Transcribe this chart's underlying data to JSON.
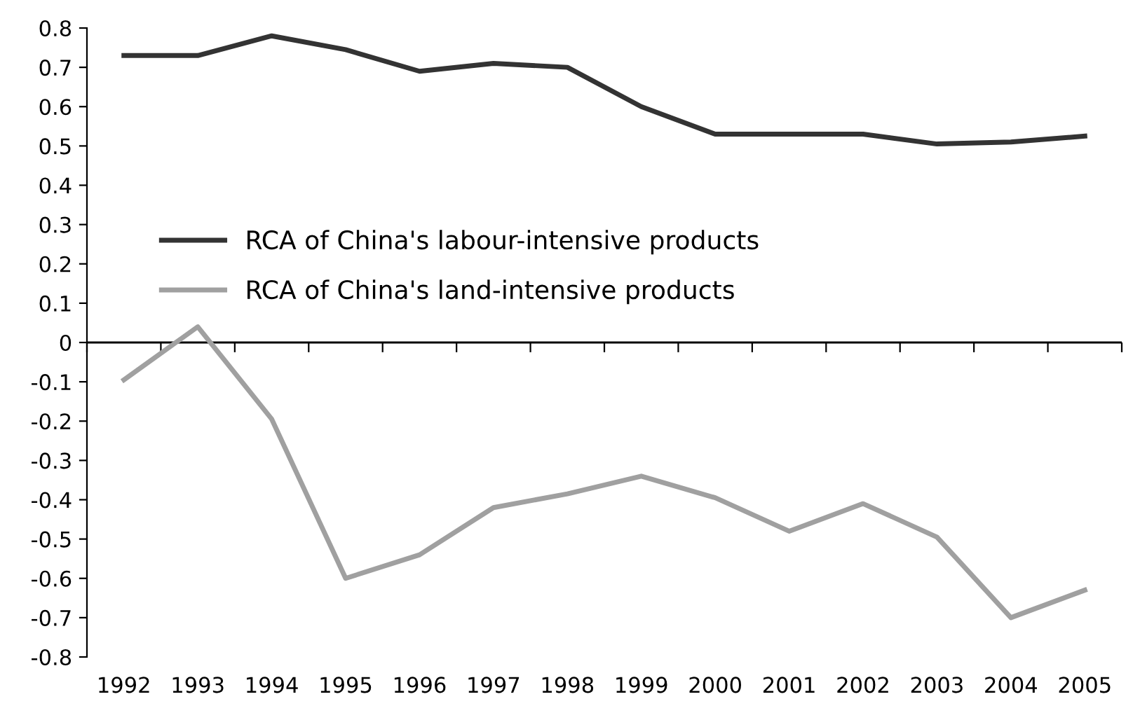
{
  "chart_data": {
    "type": "line",
    "categories": [
      "1992",
      "1993",
      "1994",
      "1995",
      "1996",
      "1997",
      "1998",
      "1999",
      "2000",
      "2001",
      "2002",
      "2003",
      "2004",
      "2005"
    ],
    "series": [
      {
        "name": "RCA of China's labour-intensive products",
        "color": "#333333",
        "values": [
          0.73,
          0.73,
          0.78,
          0.745,
          0.69,
          0.71,
          0.7,
          0.6,
          0.53,
          0.53,
          0.53,
          0.505,
          0.51,
          0.525
        ]
      },
      {
        "name": "RCA of China's land-intensive products",
        "color": "#a0a0a0",
        "values": [
          -0.095,
          0.04,
          -0.195,
          -0.6,
          -0.54,
          -0.42,
          -0.385,
          -0.34,
          -0.395,
          -0.48,
          -0.41,
          -0.495,
          -0.7,
          -0.63
        ]
      }
    ],
    "ylim": [
      -0.8,
      0.8
    ],
    "yticks": [
      {
        "value": -0.8,
        "label": "-0.8"
      },
      {
        "value": -0.7,
        "label": "-0.7"
      },
      {
        "value": -0.6,
        "label": "-0.6"
      },
      {
        "value": -0.5,
        "label": "-0.5"
      },
      {
        "value": -0.4,
        "label": "-0.4"
      },
      {
        "value": -0.3,
        "label": "-0.3"
      },
      {
        "value": -0.2,
        "label": "-0.2"
      },
      {
        "value": -0.1,
        "label": "-0.1"
      },
      0,
      0.1,
      0.2,
      0.3,
      0.4,
      0.5,
      0.6,
      0.7,
      0.8
    ],
    "ref_lines": [
      {
        "axis": "y",
        "value": 0,
        "color": "#000000"
      }
    ],
    "grid": false,
    "legend": "left",
    "marker": "none",
    "line_style": "solid"
  }
}
